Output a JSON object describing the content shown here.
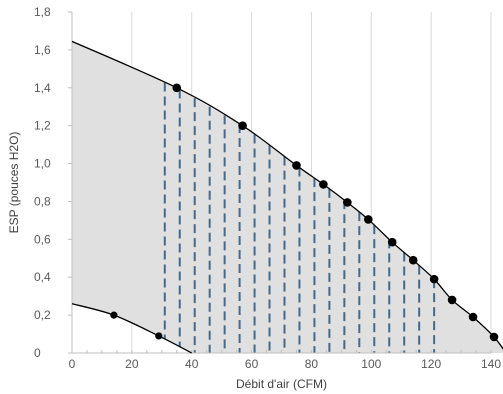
{
  "chart_data": {
    "type": "line",
    "xlabel": "Débit d'air (CFM)",
    "ylabel": "ESP (pouces H2O)",
    "xlim": [
      0,
      140
    ],
    "ylim": [
      0,
      1.8
    ],
    "x_ticks": [
      0,
      20,
      40,
      60,
      80,
      100,
      120,
      140
    ],
    "x_tick_labels": [
      "0",
      "20",
      "40",
      "60",
      "80",
      "100",
      "120",
      "140"
    ],
    "y_ticks": [
      0,
      0.2,
      0.4,
      0.6,
      0.8,
      1.0,
      1.2,
      1.4,
      1.6,
      1.8
    ],
    "y_tick_labels": [
      "0",
      "0,2",
      "0,4",
      "0,6",
      "0,8",
      "1,0",
      "1,2",
      "1,4",
      "1,6",
      "1,8"
    ],
    "grid": "vertical",
    "legend": "none",
    "series": [
      {
        "role": "upper-curve",
        "color": "#000000",
        "x": [
          0,
          35,
          57,
          75,
          84,
          92,
          99,
          107,
          114,
          121,
          127,
          134,
          141,
          145
        ],
        "y": [
          1.645,
          1.4,
          1.2,
          0.99,
          0.89,
          0.795,
          0.705,
          0.585,
          0.49,
          0.39,
          0.28,
          0.19,
          0.085,
          0.0
        ],
        "markers_x": [
          35,
          57,
          75,
          84,
          92,
          99,
          107,
          114,
          121,
          127,
          134,
          141
        ],
        "markers_y": [
          1.4,
          1.2,
          0.99,
          0.89,
          0.795,
          0.705,
          0.585,
          0.49,
          0.39,
          0.28,
          0.19,
          0.085
        ]
      },
      {
        "role": "lower-curve",
        "color": "#000000",
        "x": [
          0,
          14,
          29,
          40
        ],
        "y": [
          0.26,
          0.2,
          0.09,
          0.0
        ],
        "markers_x": [
          14,
          29
        ],
        "markers_y": [
          0.2,
          0.09
        ]
      }
    ],
    "fill_color": "#e0e0e0",
    "dashed_color": "#44698a",
    "dashed_x": [
      31,
      36,
      41,
      46,
      51,
      56,
      61,
      66,
      71,
      76,
      81,
      86,
      91,
      96,
      101,
      106,
      111,
      116,
      121
    ]
  }
}
